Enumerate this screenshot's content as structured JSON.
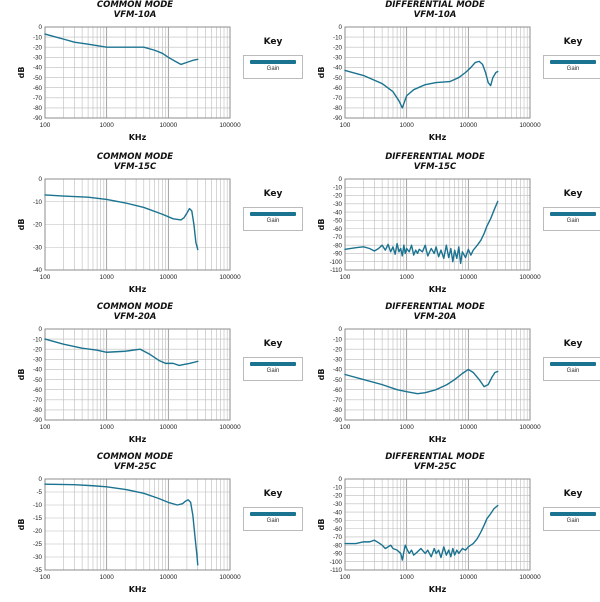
{
  "colors": {
    "line": "#1a7390",
    "grid": "#bcbcbc",
    "frame": "#8c8c8c",
    "text": "#222222"
  },
  "legend": {
    "title": "Key",
    "label": "Gain"
  },
  "chart_data": [
    {
      "type": "line",
      "scale_x": "log",
      "title": "COMMON MODE",
      "subtitle": "VFM-10A",
      "xlabel": "KHz",
      "ylabel": "dB",
      "xlim": [
        100,
        100000
      ],
      "ylim": [
        -90,
        0
      ],
      "xticks": [
        "100",
        "1000",
        "10000",
        "100000"
      ],
      "yticks": [
        "0",
        "-10",
        "-20",
        "-30",
        "-40",
        "-50",
        "-60",
        "-70",
        "-80",
        "-90"
      ],
      "series": [
        {
          "name": "Gain",
          "x": [
            100,
            150,
            200,
            300,
            500,
            1000,
            2000,
            4000,
            6000,
            8000,
            10000,
            13000,
            16000,
            20000,
            25000,
            30000
          ],
          "y": [
            -7,
            -10,
            -12,
            -15,
            -17,
            -20,
            -20,
            -20,
            -23,
            -26,
            -30,
            -34,
            -37,
            -35,
            -33,
            -32
          ]
        }
      ]
    },
    {
      "type": "line",
      "scale_x": "log",
      "title": "DIFFERENTIAL MODE",
      "subtitle": "VFM-10A",
      "xlabel": "KHz",
      "ylabel": "dB",
      "xlim": [
        100,
        100000
      ],
      "ylim": [
        -90,
        0
      ],
      "xticks": [
        "100",
        "1000",
        "10000",
        "100000"
      ],
      "yticks": [
        "0",
        "-10",
        "-20",
        "-30",
        "-40",
        "-50",
        "-60",
        "-70",
        "-80",
        "-90"
      ],
      "series": [
        {
          "name": "Gain",
          "x": [
            100,
            200,
            400,
            600,
            750,
            850,
            1000,
            1300,
            2000,
            3000,
            5000,
            7000,
            9000,
            11000,
            13000,
            15000,
            17000,
            19000,
            21000,
            23000,
            25000,
            28000,
            30000
          ],
          "y": [
            -43,
            -48,
            -56,
            -64,
            -73,
            -80,
            -68,
            -62,
            -57,
            -55,
            -54,
            -50,
            -45,
            -40,
            -35,
            -34,
            -37,
            -45,
            -55,
            -58,
            -50,
            -45,
            -44
          ]
        }
      ]
    },
    {
      "type": "line",
      "scale_x": "log",
      "title": "COMMON MODE",
      "subtitle": "VFM-15C",
      "xlabel": "KHz",
      "ylabel": "dB",
      "xlim": [
        100,
        100000
      ],
      "ylim": [
        -40,
        0
      ],
      "xticks": [
        "100",
        "1000",
        "10000",
        "100000"
      ],
      "yticks": [
        "0",
        "-10",
        "-20",
        "-30",
        "-40"
      ],
      "series": [
        {
          "name": "Gain",
          "x": [
            100,
            200,
            500,
            1000,
            2000,
            4000,
            8000,
            12000,
            16000,
            18000,
            20000,
            22000,
            24000,
            26000,
            28000,
            30000
          ],
          "y": [
            -7,
            -7.5,
            -8,
            -9,
            -10.5,
            -12.5,
            -15.5,
            -17.5,
            -18,
            -17,
            -15,
            -13,
            -14,
            -20,
            -28,
            -31
          ]
        }
      ]
    },
    {
      "type": "line",
      "scale_x": "log",
      "title": "DIFFERENTIAL MODE",
      "subtitle": "VFM-15C",
      "xlabel": "KHz",
      "ylabel": "dB",
      "xlim": [
        100,
        100000
      ],
      "ylim": [
        -110,
        0
      ],
      "xticks": [
        "100",
        "1000",
        "10000",
        "100000"
      ],
      "yticks": [
        "0",
        "-10",
        "-20",
        "-30",
        "-40",
        "-50",
        "-60",
        "-70",
        "-80",
        "-90",
        "-100",
        "-110"
      ],
      "series": [
        {
          "name": "Gain",
          "x": [
            100,
            150,
            200,
            250,
            300,
            350,
            400,
            450,
            500,
            550,
            600,
            650,
            700,
            750,
            800,
            850,
            900,
            950,
            1000,
            1100,
            1200,
            1300,
            1400,
            1500,
            1600,
            1800,
            2000,
            2200,
            2500,
            2800,
            3000,
            3300,
            3600,
            4000,
            4400,
            4800,
            5200,
            5600,
            6000,
            6500,
            7000,
            7500,
            8000,
            9000,
            10000,
            11000,
            12000,
            14000,
            16000,
            18000,
            20000,
            23000,
            26000,
            30000
          ],
          "y": [
            -85,
            -83,
            -82,
            -84,
            -87,
            -84,
            -80,
            -86,
            -79,
            -88,
            -82,
            -91,
            -78,
            -88,
            -84,
            -93,
            -80,
            -90,
            -84,
            -88,
            -80,
            -92,
            -86,
            -90,
            -85,
            -88,
            -80,
            -93,
            -84,
            -90,
            -82,
            -94,
            -86,
            -96,
            -80,
            -95,
            -84,
            -100,
            -86,
            -96,
            -82,
            -102,
            -88,
            -95,
            -85,
            -92,
            -86,
            -80,
            -74,
            -66,
            -57,
            -48,
            -38,
            -27
          ]
        }
      ]
    },
    {
      "type": "line",
      "scale_x": "log",
      "title": "COMMON MODE",
      "subtitle": "VFM-20A",
      "xlabel": "KHz",
      "ylabel": "dB",
      "xlim": [
        100,
        100000
      ],
      "ylim": [
        -90,
        0
      ],
      "xticks": [
        "100",
        "1000",
        "10000",
        "100000"
      ],
      "yticks": [
        "0",
        "-10",
        "-20",
        "-30",
        "-40",
        "-50",
        "-60",
        "-70",
        "-80",
        "-90"
      ],
      "series": [
        {
          "name": "Gain",
          "x": [
            100,
            200,
            400,
            700,
            1000,
            2000,
            3500,
            5000,
            7000,
            9000,
            12000,
            15000,
            18000,
            22000,
            26000,
            30000
          ],
          "y": [
            -10,
            -15,
            -19,
            -21,
            -23,
            -22,
            -20,
            -25,
            -31,
            -34,
            -34,
            -36,
            -35,
            -34,
            -33,
            -32
          ]
        }
      ]
    },
    {
      "type": "line",
      "scale_x": "log",
      "title": "DIFFERENTIAL MODE",
      "subtitle": "VFM-20A",
      "xlabel": "KHz",
      "ylabel": "dB",
      "xlim": [
        100,
        100000
      ],
      "ylim": [
        -90,
        0
      ],
      "xticks": [
        "100",
        "1000",
        "10000",
        "100000"
      ],
      "yticks": [
        "0",
        "-10",
        "-20",
        "-30",
        "-40",
        "-50",
        "-60",
        "-70",
        "-80",
        "-90"
      ],
      "series": [
        {
          "name": "Gain",
          "x": [
            100,
            200,
            400,
            700,
            1000,
            1500,
            2000,
            3000,
            4500,
            6000,
            8000,
            10000,
            12000,
            15000,
            18000,
            21000,
            24000,
            27000,
            30000
          ],
          "y": [
            -45,
            -50,
            -55,
            -60,
            -62,
            -64,
            -63,
            -60,
            -55,
            -50,
            -44,
            -40,
            -43,
            -50,
            -57,
            -55,
            -48,
            -43,
            -42
          ]
        }
      ]
    },
    {
      "type": "line",
      "scale_x": "log",
      "title": "COMMON MODE",
      "subtitle": "VFM-25C",
      "xlabel": "KHz",
      "ylabel": "dB",
      "xlim": [
        100,
        100000
      ],
      "ylim": [
        -35,
        0
      ],
      "xticks": [
        "100",
        "1000",
        "10000",
        "100000"
      ],
      "yticks": [
        "0",
        "-5",
        "-10",
        "-15",
        "-20",
        "-25",
        "-30",
        "-35"
      ],
      "series": [
        {
          "name": "Gain",
          "x": [
            100,
            300,
            600,
            1000,
            2000,
            4000,
            7000,
            10000,
            14000,
            17000,
            19000,
            21000,
            23000,
            25000,
            27000,
            29000,
            30000
          ],
          "y": [
            -2,
            -2.2,
            -2.6,
            -3,
            -4,
            -5.5,
            -7.5,
            -9,
            -10,
            -9.5,
            -8.5,
            -8,
            -9,
            -14,
            -22,
            -29,
            -33
          ]
        }
      ]
    },
    {
      "type": "line",
      "scale_x": "log",
      "title": "DIFFERENTIAL MODE",
      "subtitle": "VFM-25C",
      "xlabel": "KHz",
      "ylabel": "dB",
      "xlim": [
        100,
        100000
      ],
      "ylim": [
        -110,
        0
      ],
      "xticks": [
        "100",
        "1000",
        "10000",
        "100000"
      ],
      "yticks": [
        "0",
        "-10",
        "-20",
        "-30",
        "-40",
        "-50",
        "-60",
        "-70",
        "-80",
        "-90",
        "-100",
        "-110"
      ],
      "series": [
        {
          "name": "Gain",
          "x": [
            100,
            150,
            200,
            250,
            300,
            350,
            400,
            450,
            500,
            550,
            600,
            700,
            800,
            850,
            900,
            950,
            1000,
            1100,
            1200,
            1300,
            1500,
            1700,
            2000,
            2200,
            2500,
            2800,
            3000,
            3300,
            3600,
            4000,
            4400,
            4800,
            5200,
            5600,
            6000,
            6500,
            7000,
            8000,
            9000,
            10000,
            12000,
            14000,
            16000,
            18000,
            20000,
            23000,
            26000,
            30000
          ],
          "y": [
            -78,
            -78,
            -76,
            -76,
            -74,
            -77,
            -80,
            -84,
            -82,
            -80,
            -84,
            -86,
            -90,
            -98,
            -88,
            -80,
            -84,
            -90,
            -86,
            -92,
            -88,
            -84,
            -90,
            -86,
            -94,
            -84,
            -90,
            -86,
            -95,
            -82,
            -92,
            -86,
            -94,
            -84,
            -92,
            -86,
            -90,
            -84,
            -86,
            -82,
            -78,
            -72,
            -64,
            -56,
            -48,
            -42,
            -36,
            -32
          ]
        }
      ]
    }
  ]
}
